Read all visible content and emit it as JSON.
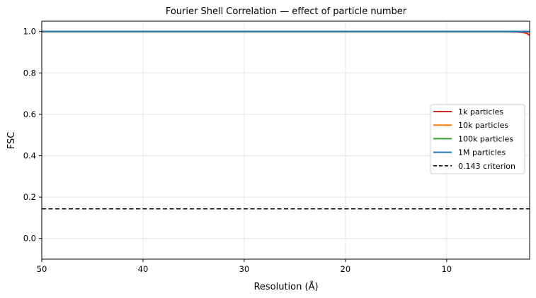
{
  "chart_data": {
    "type": "line",
    "title": "Fourier Shell Correlation — effect of particle number",
    "xlabel": "Resolution (Å)",
    "ylabel": "FSC",
    "xlim": [
      50,
      1.8
    ],
    "ylim": [
      -0.1,
      1.05
    ],
    "x_inverted": true,
    "grid": true,
    "legend_position": "center-right",
    "x_ticks": [
      50,
      40,
      30,
      20,
      10
    ],
    "x_tick_labels": [
      "50",
      "40",
      "30",
      "20",
      "10"
    ],
    "y_ticks": [
      0.0,
      0.2,
      0.4,
      0.6,
      0.8,
      1.0
    ],
    "y_tick_labels": [
      "0.0",
      "0.2",
      "0.4",
      "0.6",
      "0.8",
      "1.0"
    ],
    "x": [
      50,
      40,
      30,
      20,
      10,
      6,
      4,
      3,
      2.5,
      2.2,
      2.0,
      1.8
    ],
    "series": [
      {
        "name": "1k particles",
        "color": "#d62728",
        "dash": "solid",
        "values": [
          1.0,
          1.0,
          1.0,
          1.0,
          1.0,
          1.0,
          0.999,
          0.998,
          0.996,
          0.993,
          0.989,
          0.982
        ]
      },
      {
        "name": "10k particles",
        "color": "#ff7f0e",
        "dash": "solid",
        "values": [
          1.0,
          1.0,
          1.0,
          1.0,
          1.0,
          1.0,
          1.0,
          1.0,
          0.999,
          0.999,
          0.998,
          0.997
        ]
      },
      {
        "name": "100k particles",
        "color": "#2ca02c",
        "dash": "solid",
        "values": [
          1.0,
          1.0,
          1.0,
          1.0,
          1.0,
          1.0,
          1.0,
          1.0,
          1.0,
          1.0,
          1.0,
          0.999
        ]
      },
      {
        "name": "1M particles",
        "color": "#1f77b4",
        "dash": "solid",
        "values": [
          1.0,
          1.0,
          1.0,
          1.0,
          1.0,
          1.0,
          1.0,
          1.0,
          1.0,
          1.0,
          1.0,
          1.0
        ]
      }
    ],
    "reference_lines": [
      {
        "name": "0.143 criterion",
        "y": 0.143,
        "color": "#000000",
        "dash": "dashed"
      }
    ]
  }
}
